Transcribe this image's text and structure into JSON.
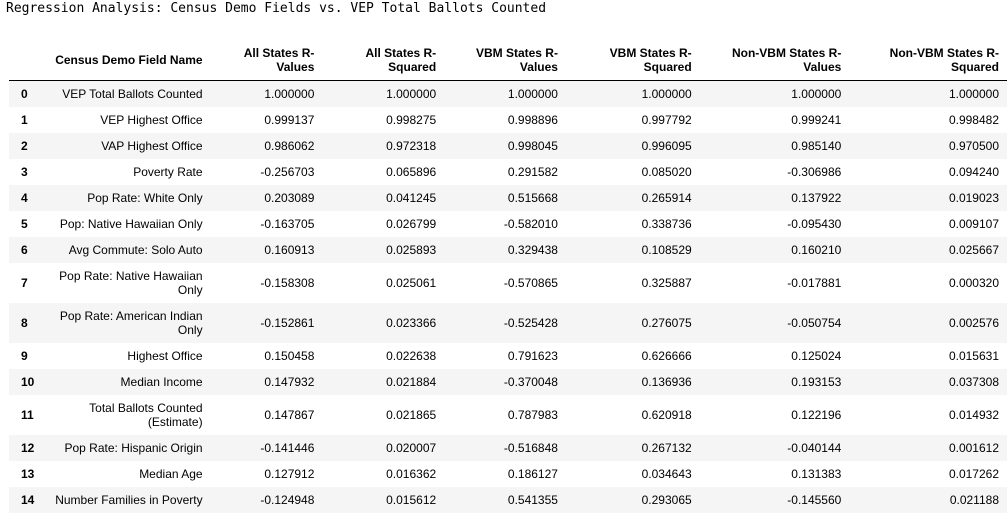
{
  "caption": "Regression Analysis: Census Demo Fields vs. VEP Total Ballots Counted",
  "columns": {
    "name": "Census Demo Field Name",
    "all_r": [
      "All States R-",
      "Values"
    ],
    "all_r2": [
      "All States R-",
      "Squared"
    ],
    "vbm_r": [
      "VBM States R-",
      "Values"
    ],
    "vbm_r2": [
      "VBM States R-",
      "Squared"
    ],
    "nonvbm_r": [
      "Non-VBM States R-",
      "Values"
    ],
    "nonvbm_r2": [
      "Non-VBM States R-",
      "Squared"
    ]
  },
  "rows": [
    {
      "idx": "0",
      "name": [
        "VEP Total Ballots Counted"
      ],
      "v": [
        "1.000000",
        "1.000000",
        "1.000000",
        "1.000000",
        "1.000000",
        "1.000000"
      ]
    },
    {
      "idx": "1",
      "name": [
        "VEP Highest Office"
      ],
      "v": [
        "0.999137",
        "0.998275",
        "0.998896",
        "0.997792",
        "0.999241",
        "0.998482"
      ]
    },
    {
      "idx": "2",
      "name": [
        "VAP Highest Office"
      ],
      "v": [
        "0.986062",
        "0.972318",
        "0.998045",
        "0.996095",
        "0.985140",
        "0.970500"
      ]
    },
    {
      "idx": "3",
      "name": [
        "Poverty Rate"
      ],
      "v": [
        "-0.256703",
        "0.065896",
        "0.291582",
        "0.085020",
        "-0.306986",
        "0.094240"
      ]
    },
    {
      "idx": "4",
      "name": [
        "Pop Rate: White Only"
      ],
      "v": [
        "0.203089",
        "0.041245",
        "0.515668",
        "0.265914",
        "0.137922",
        "0.019023"
      ]
    },
    {
      "idx": "5",
      "name": [
        "Pop: Native Hawaiian Only"
      ],
      "v": [
        "-0.163705",
        "0.026799",
        "-0.582010",
        "0.338736",
        "-0.095430",
        "0.009107"
      ]
    },
    {
      "idx": "6",
      "name": [
        "Avg Commute: Solo Auto"
      ],
      "v": [
        "0.160913",
        "0.025893",
        "0.329438",
        "0.108529",
        "0.160210",
        "0.025667"
      ]
    },
    {
      "idx": "7",
      "name": [
        "Pop Rate: Native Hawaiian",
        "Only"
      ],
      "v": [
        "-0.158308",
        "0.025061",
        "-0.570865",
        "0.325887",
        "-0.017881",
        "0.000320"
      ]
    },
    {
      "idx": "8",
      "name": [
        "Pop Rate: American Indian",
        "Only"
      ],
      "v": [
        "-0.152861",
        "0.023366",
        "-0.525428",
        "0.276075",
        "-0.050754",
        "0.002576"
      ]
    },
    {
      "idx": "9",
      "name": [
        "Highest Office"
      ],
      "v": [
        "0.150458",
        "0.022638",
        "0.791623",
        "0.626666",
        "0.125024",
        "0.015631"
      ]
    },
    {
      "idx": "10",
      "name": [
        "Median Income"
      ],
      "v": [
        "0.147932",
        "0.021884",
        "-0.370048",
        "0.136936",
        "0.193153",
        "0.037308"
      ]
    },
    {
      "idx": "11",
      "name": [
        "Total Ballots Counted",
        "(Estimate)"
      ],
      "v": [
        "0.147867",
        "0.021865",
        "0.787983",
        "0.620918",
        "0.122196",
        "0.014932"
      ]
    },
    {
      "idx": "12",
      "name": [
        "Pop Rate: Hispanic Origin"
      ],
      "v": [
        "-0.141446",
        "0.020007",
        "-0.516848",
        "0.267132",
        "-0.040144",
        "0.001612"
      ]
    },
    {
      "idx": "13",
      "name": [
        "Median Age"
      ],
      "v": [
        "0.127912",
        "0.016362",
        "0.186127",
        "0.034643",
        "0.131383",
        "0.017262"
      ]
    },
    {
      "idx": "14",
      "name": [
        "Number Families in Poverty"
      ],
      "v": [
        "-0.124948",
        "0.015612",
        "0.541355",
        "0.293065",
        "-0.145560",
        "0.021188"
      ]
    }
  ]
}
